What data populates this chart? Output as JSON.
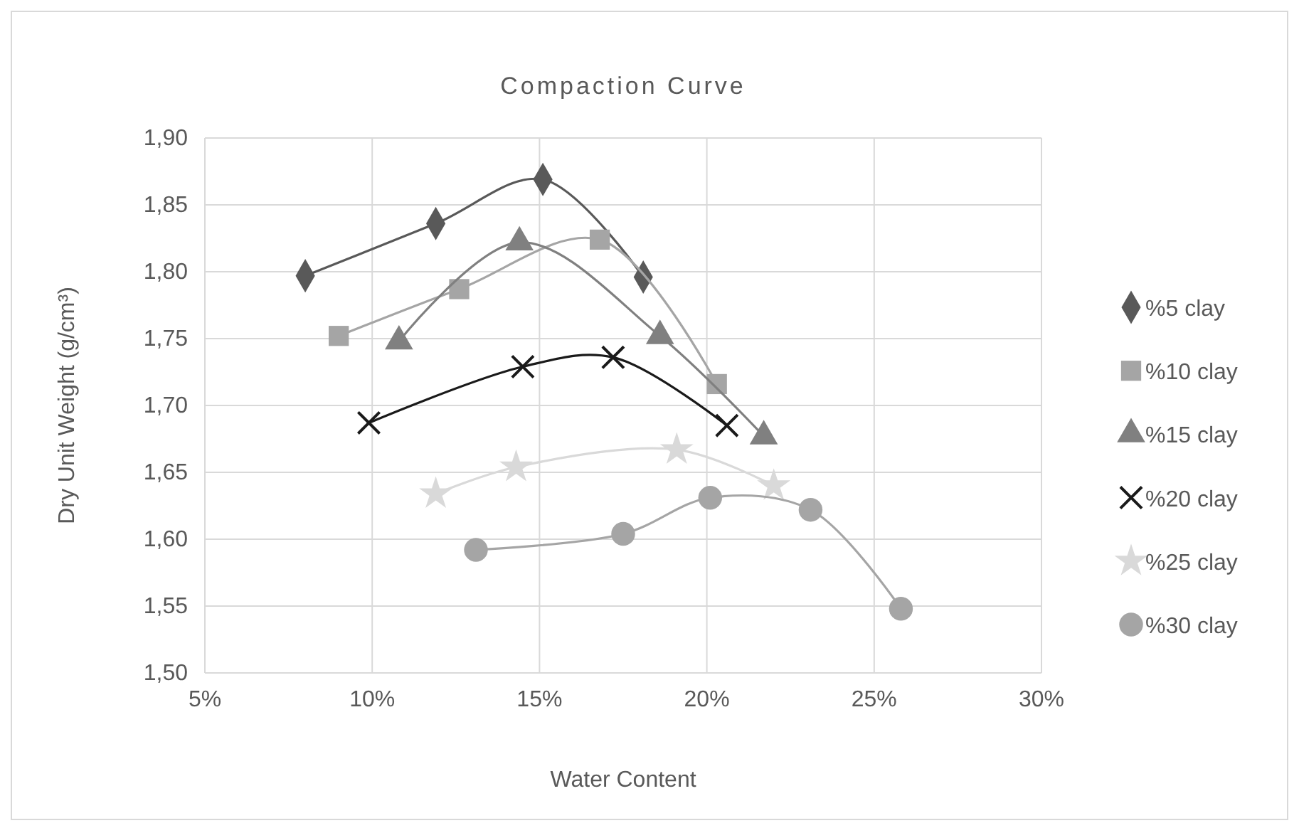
{
  "chart_data": {
    "type": "line",
    "title": "Compaction Curve",
    "xlabel": "Water Content",
    "ylabel": "Dry Unit Weight (g/cm³)",
    "xlim": [
      5,
      30
    ],
    "xticks": [
      {
        "value": 5,
        "label": "5%"
      },
      {
        "value": 10,
        "label": "10%"
      },
      {
        "value": 15,
        "label": "15%"
      },
      {
        "value": 20,
        "label": "20%"
      },
      {
        "value": 25,
        "label": "25%"
      },
      {
        "value": 30,
        "label": "30%"
      }
    ],
    "ylim": [
      1.5,
      1.9
    ],
    "yticks": [
      {
        "value": 1.5,
        "label": "1,50"
      },
      {
        "value": 1.55,
        "label": "1,55"
      },
      {
        "value": 1.6,
        "label": "1,60"
      },
      {
        "value": 1.65,
        "label": "1,65"
      },
      {
        "value": 1.7,
        "label": "1,70"
      },
      {
        "value": 1.75,
        "label": "1,75"
      },
      {
        "value": 1.8,
        "label": "1,80"
      },
      {
        "value": 1.85,
        "label": "1,85"
      },
      {
        "value": 1.9,
        "label": "1,90"
      }
    ],
    "grid": true,
    "legend": "right",
    "line_style": "solid",
    "series": [
      {
        "name": "%5 clay",
        "color": "#595959",
        "marker": "diamond",
        "x": [
          8.0,
          11.9,
          15.1,
          18.1
        ],
        "values": [
          1.797,
          1.836,
          1.869,
          1.796
        ]
      },
      {
        "name": "%10 clay",
        "color": "#a5a5a5",
        "marker": "square",
        "x": [
          9.0,
          12.6,
          16.8,
          20.3
        ],
        "values": [
          1.752,
          1.787,
          1.824,
          1.716
        ]
      },
      {
        "name": "%15 clay",
        "color": "#808080",
        "marker": "triangle",
        "x": [
          10.8,
          14.4,
          18.6,
          21.7
        ],
        "values": [
          1.748,
          1.822,
          1.752,
          1.677
        ]
      },
      {
        "name": "%20 clay",
        "color": "#1a1a1a",
        "marker": "cross",
        "x": [
          9.9,
          14.5,
          17.2,
          20.6
        ],
        "values": [
          1.687,
          1.729,
          1.736,
          1.685
        ]
      },
      {
        "name": "%25 clay",
        "color": "#d9d9d9",
        "marker": "star",
        "x": [
          11.9,
          14.3,
          19.1,
          22.0
        ],
        "values": [
          1.634,
          1.654,
          1.667,
          1.64
        ]
      },
      {
        "name": "%30 clay",
        "color": "#a5a5a5",
        "marker": "circle",
        "x": [
          13.1,
          17.5,
          20.1,
          23.1,
          25.8
        ],
        "values": [
          1.592,
          1.604,
          1.631,
          1.622,
          1.548
        ]
      }
    ]
  }
}
